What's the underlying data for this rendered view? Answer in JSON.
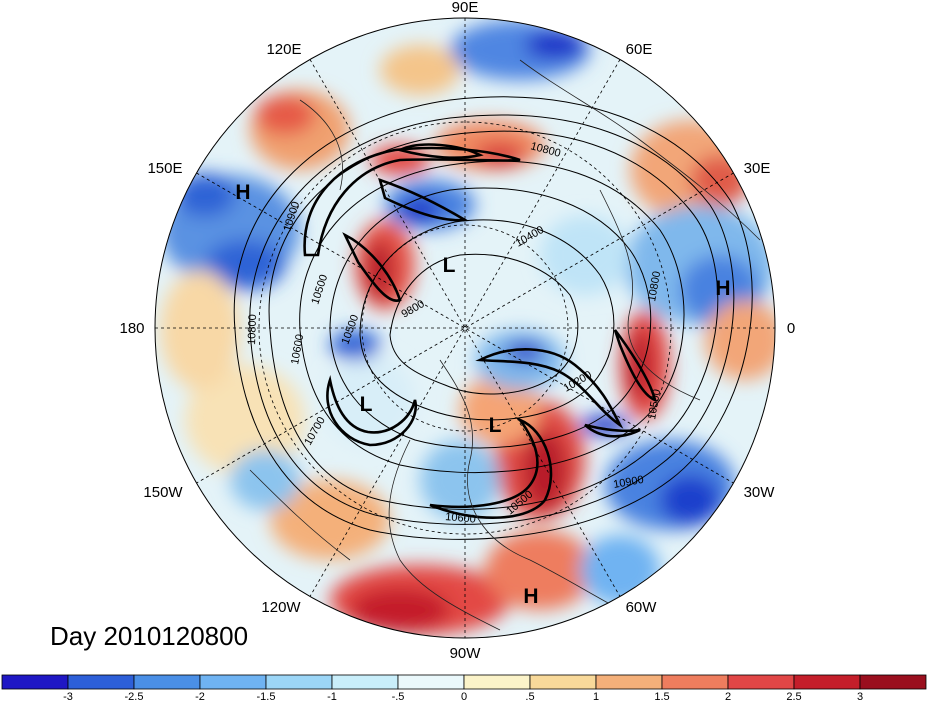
{
  "title": "Day 2010120800",
  "longitude_labels": [
    "90E",
    "60E",
    "30E",
    "0",
    "30W",
    "60W",
    "90W",
    "120W",
    "150W",
    "180",
    "150E",
    "120E"
  ],
  "contour_labels": [
    "10800",
    "10400",
    "10900",
    "10500",
    "9800",
    "10600",
    "10500",
    "10800",
    "10200",
    "10500",
    "10700",
    "10800",
    "10900",
    "10600",
    "10500"
  ],
  "pressure_centers": [
    {
      "type": "H"
    },
    {
      "type": "L"
    },
    {
      "type": "H"
    },
    {
      "type": "L"
    },
    {
      "type": "L"
    },
    {
      "type": "H"
    }
  ],
  "colorbar": {
    "tick_labels": [
      "-3",
      "-2.5",
      "-2",
      "-1.5",
      "-1",
      "-.5",
      "0",
      ".5",
      "1",
      "1.5",
      "2",
      "2.5",
      "3"
    ],
    "colors": [
      "#1f17c4",
      "#2d5fd8",
      "#4a8fe6",
      "#6fb3f2",
      "#9cd6f7",
      "#c9eefa",
      "#eaf8fb",
      "#fbf3c9",
      "#f8d99a",
      "#f4b07a",
      "#ee7d5e",
      "#e14646",
      "#c41e2a",
      "#9a0f1e"
    ]
  }
}
